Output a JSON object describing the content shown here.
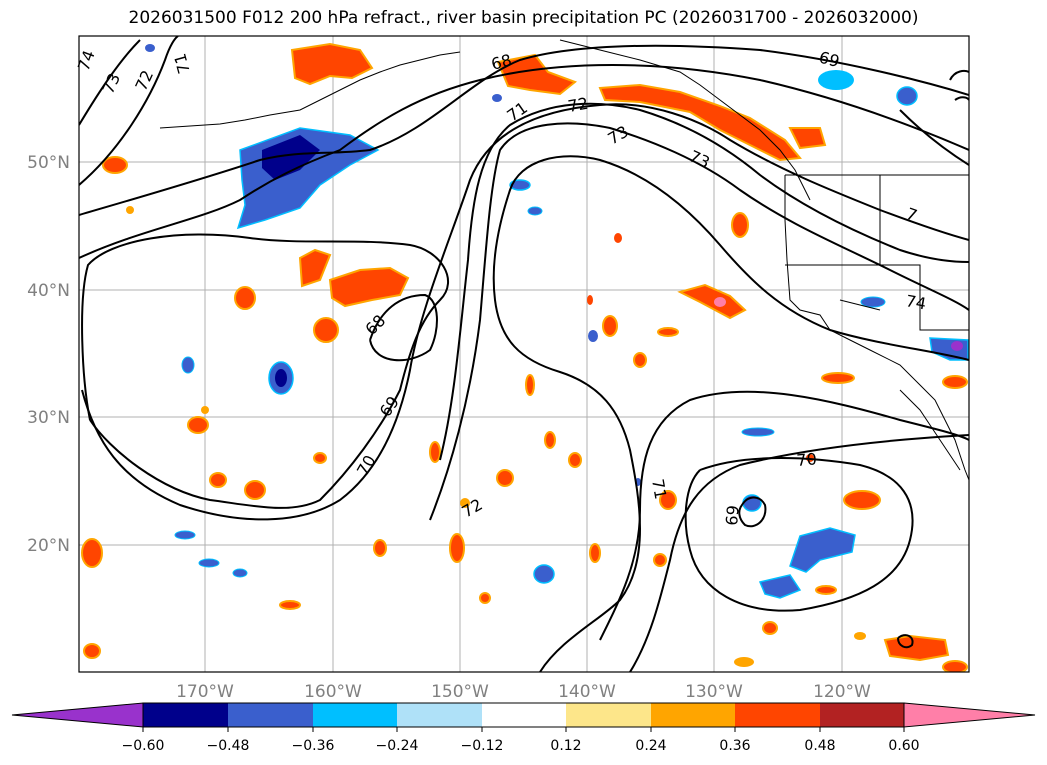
{
  "title": "2026031500 F012 200 hPa refract., river basin precipitation PC (2026031700 - 2026032000)",
  "latitude_labels": [
    "50°N",
    "40°N",
    "30°N",
    "20°N"
  ],
  "longitude_labels": [
    "170°W",
    "160°W",
    "150°W",
    "140°W",
    "130°W",
    "120°W"
  ],
  "contour_labels": [
    "74",
    "73",
    "72",
    "71",
    "68",
    "71",
    "72",
    "73",
    "73",
    "69",
    "68",
    "69",
    "70",
    "72",
    "71",
    "70",
    "69",
    "74",
    "7"
  ],
  "colorbar": {
    "tick_labels": [
      "−0.60",
      "−0.48",
      "−0.36",
      "−0.24",
      "−0.12",
      "0.12",
      "0.24",
      "0.36",
      "0.48",
      "0.60"
    ],
    "colors": [
      "#9932cc",
      "#00008b",
      "#3a5fcd",
      "#00bfff",
      "#afe1f8",
      "#ffffff",
      "#fde68a",
      "#ffa500",
      "#ff4500",
      "#b22222",
      "#ff7fa8"
    ]
  }
}
